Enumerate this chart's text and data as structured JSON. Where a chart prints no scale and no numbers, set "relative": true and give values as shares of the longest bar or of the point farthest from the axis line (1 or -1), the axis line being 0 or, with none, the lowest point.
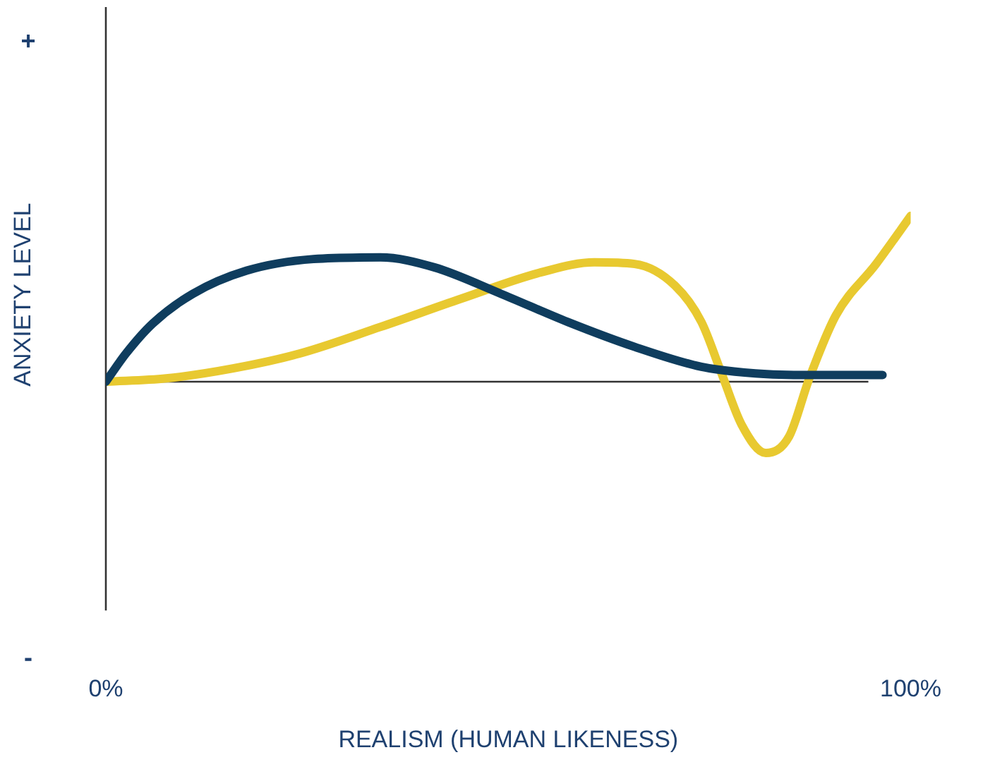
{
  "chart_data": {
    "type": "line",
    "xlabel": "REALISM (HUMAN LIKENESS)",
    "ylabel": "ANXIETY LEVEL",
    "relative": true,
    "xlim": [
      0,
      100
    ],
    "xticks": [
      {
        "value": 0,
        "label": "0%"
      },
      {
        "value": 100,
        "label": "100%"
      }
    ],
    "grid": false,
    "legend": false,
    "annotations": [
      "+",
      "-"
    ],
    "series": [
      {
        "color": "#0f3d5e",
        "x": [
          0,
          2.5,
          5.8,
          10.8,
          17.5,
          25.8,
          34.1,
          40.8,
          49.1,
          57.4,
          65.7,
          74.0,
          80.7,
          87.4,
          96.5
        ],
        "values": [
          0,
          0.17,
          0.35,
          0.53,
          0.67,
          0.74,
          0.75,
          0.69,
          0.53,
          0.36,
          0.21,
          0.09,
          0.05,
          0.04,
          0.04
        ]
      },
      {
        "color": "#e8c930",
        "x": [
          0,
          7.5,
          15.8,
          24.1,
          34.1,
          44.1,
          54.1,
          60.7,
          65.7,
          70.7,
          74.0,
          76.5,
          79.0,
          82.0,
          84.9,
          87.4,
          90.7,
          95.7,
          100
        ],
        "values": [
          0,
          0.02,
          0.08,
          0.17,
          0.33,
          0.5,
          0.66,
          0.72,
          0.71,
          0.58,
          0.36,
          0.05,
          -0.26,
          -0.43,
          -0.33,
          0.02,
          0.4,
          0.71,
          1
        ]
      }
    ]
  }
}
